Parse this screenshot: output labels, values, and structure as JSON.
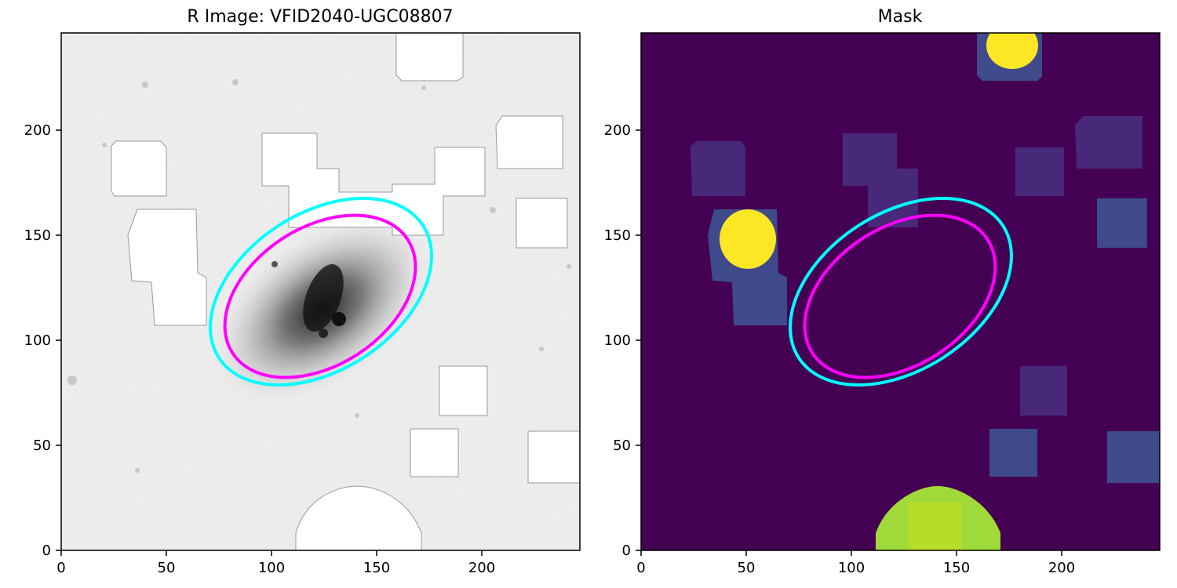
{
  "figure": {
    "panels": [
      {
        "id": "r-image",
        "title": "R Image: VFID2040-UGC08807",
        "colormap": "gray_r",
        "x_ticks": [
          0,
          50,
          100,
          150,
          200
        ],
        "y_ticks": [
          0,
          50,
          100,
          150,
          200
        ],
        "xlim": [
          0,
          247
        ],
        "ylim": [
          0,
          247
        ]
      },
      {
        "id": "mask",
        "title": "Mask",
        "colormap": "viridis",
        "x_ticks": [
          0,
          50,
          100,
          150,
          200
        ],
        "y_ticks": [
          0,
          50,
          100,
          150,
          200
        ],
        "xlim": [
          0,
          247
        ],
        "ylim": [
          0,
          247
        ]
      }
    ],
    "ellipses": [
      {
        "name": "outer-ellipse",
        "color": "#00ffff",
        "center": [
          120,
          123
        ],
        "semi_major": 62,
        "semi_minor": 38,
        "angle_deg": 35
      },
      {
        "name": "inner-ellipse",
        "color": "#ff00ff",
        "center": [
          120,
          121
        ],
        "semi_major": 55,
        "semi_minor": 34,
        "angle_deg": 35
      }
    ],
    "mask_colors": {
      "background": "#440154",
      "dim_region": "#482878",
      "medium_region": "#3e4a89",
      "bright_source": "#fde725",
      "large_source": "#a0da39",
      "large_source_core": "#b5de2b"
    }
  }
}
